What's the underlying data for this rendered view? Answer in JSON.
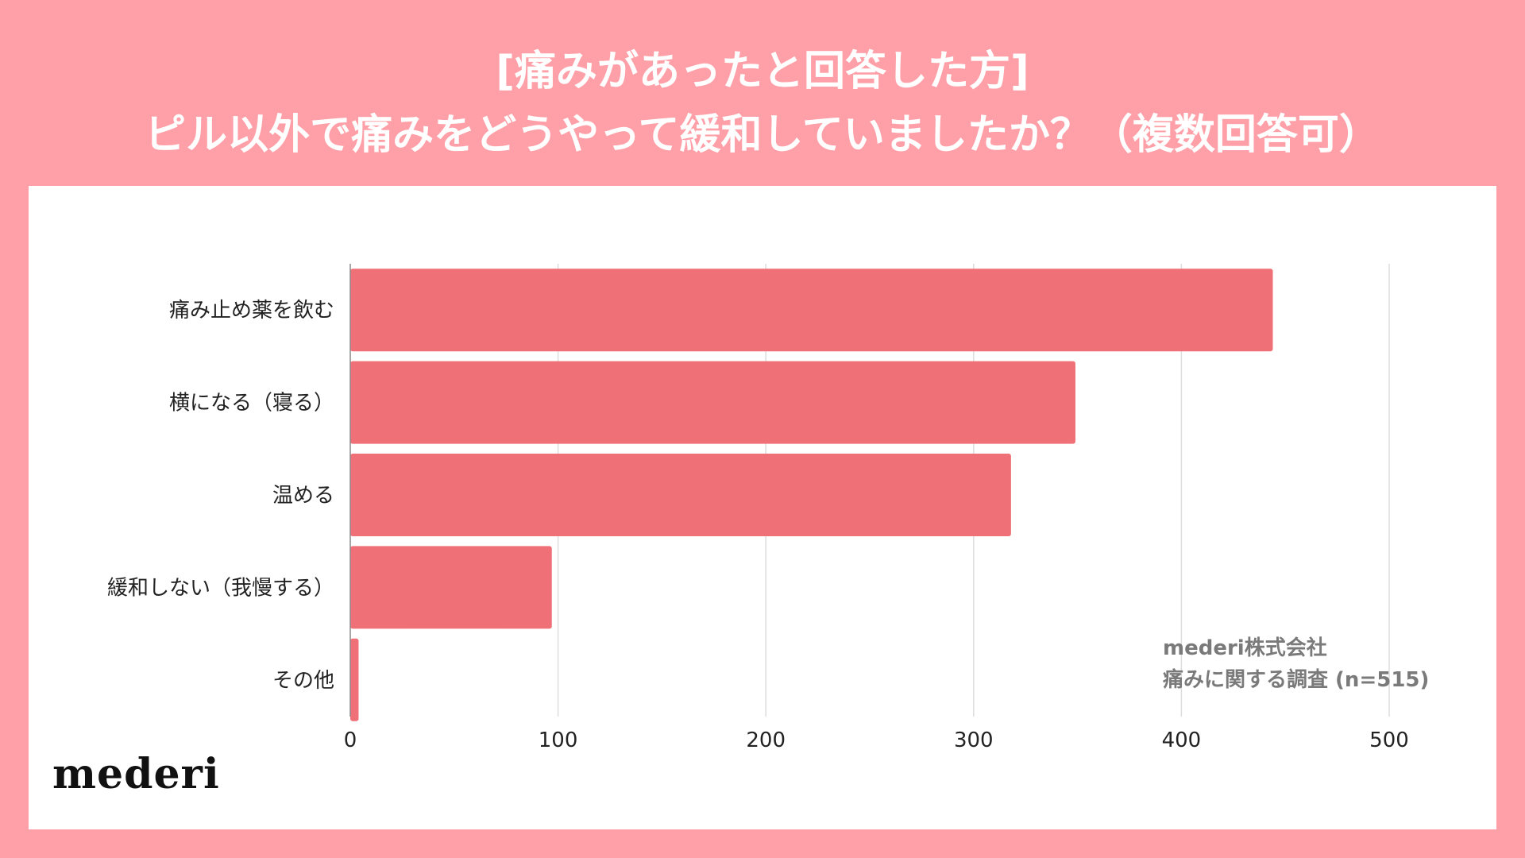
{
  "title": {
    "line1": "[痛みがあったと回答した方]",
    "line2": "ピル以外で痛みをどうやって緩和していましたか？（複数回答可）"
  },
  "credit": {
    "line1": "mederi株式会社",
    "line2": "痛みに関する調査 (n=515)"
  },
  "logo": {
    "text": "mederi"
  },
  "colors": {
    "background": "#FFA0A8",
    "panel": "#FFFFFF",
    "bar": "#F07077",
    "grid": "#DDDDDD",
    "text": "#222222"
  },
  "chart_data": {
    "type": "bar",
    "orientation": "horizontal",
    "categories": [
      "痛み止め薬を飲む",
      "横になる（寝る）",
      "温める",
      "緩和しない（我慢する）",
      "その他"
    ],
    "values": [
      444,
      349,
      318,
      97,
      4
    ],
    "xlim": [
      0,
      500
    ],
    "xticks": [
      0,
      100,
      200,
      300,
      400,
      500
    ],
    "grid": true,
    "legend": "none"
  }
}
